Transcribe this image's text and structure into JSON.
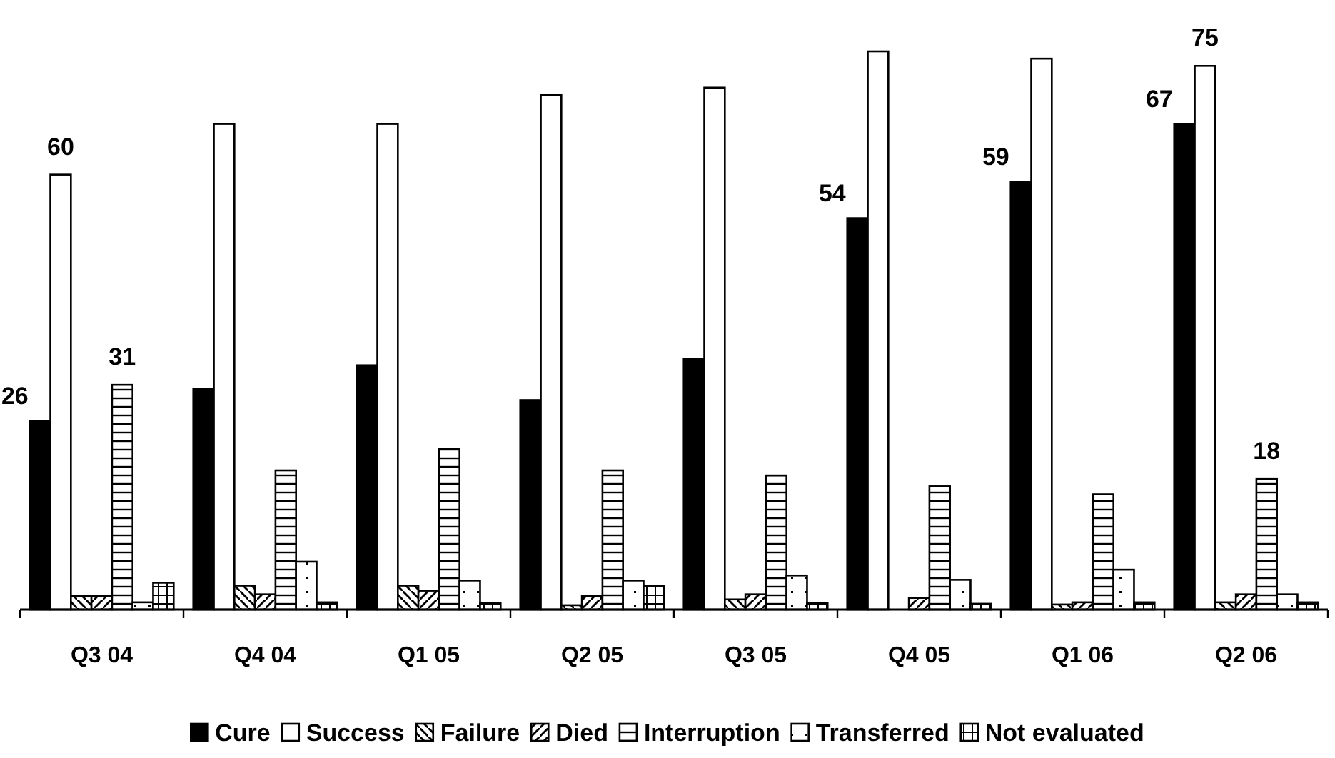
{
  "chart_data": {
    "type": "bar",
    "categories": [
      "Q3 04",
      "Q4 04",
      "Q1 05",
      "Q2 05",
      "Q3 05",
      "Q4 05",
      "Q1 06",
      "Q2 06"
    ],
    "legend": "bottom",
    "tick_labels": "x",
    "series": [
      {
        "name": "Cure",
        "color": "#000000",
        "values": [
          26,
          30.4,
          33.7,
          28.9,
          34.6,
          54,
          59,
          67
        ],
        "value_labels": [
          "26",
          null,
          null,
          null,
          null,
          "54",
          "59",
          "67"
        ]
      },
      {
        "name": "Success",
        "color": "#ffffff",
        "values": [
          60,
          67,
          67,
          71,
          72,
          77,
          76,
          75
        ],
        "value_labels": [
          "60",
          null,
          null,
          null,
          null,
          null,
          null,
          "75"
        ]
      },
      {
        "name": "Failure",
        "color": "#000000",
        "values": [
          1.9,
          3.3,
          3.3,
          0.6,
          1.4,
          null,
          0.7,
          1.0
        ]
      },
      {
        "name": "Died",
        "color": "#000000",
        "values": [
          1.9,
          2.1,
          2.6,
          1.9,
          2.1,
          1.6,
          1.0,
          2.1
        ]
      },
      {
        "name": "Interruption",
        "color": "#000000",
        "values": [
          31,
          19.2,
          22.2,
          19.2,
          18.5,
          17.0,
          15.9,
          18
        ],
        "value_labels": [
          "31",
          null,
          null,
          null,
          null,
          null,
          null,
          "18"
        ]
      },
      {
        "name": "Transferred",
        "color": "#000000",
        "values": [
          1.0,
          6.6,
          4.0,
          4.0,
          4.7,
          4.1,
          5.5,
          2.1
        ]
      },
      {
        "name": "Not evaluated",
        "color": "#000000",
        "values": [
          3.7,
          1.0,
          0.9,
          3.3,
          0.9,
          0.8,
          1.0,
          1.0
        ]
      }
    ]
  }
}
